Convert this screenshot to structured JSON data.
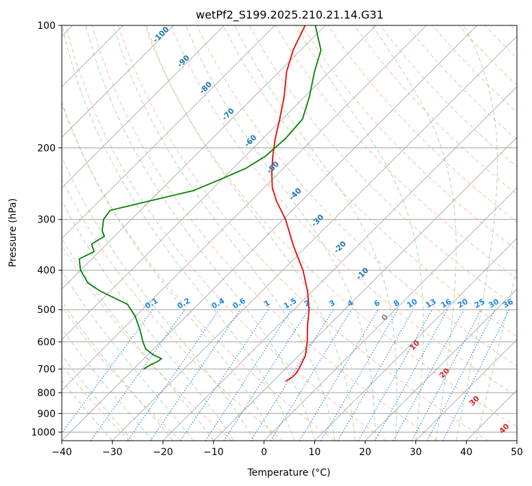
{
  "chart_data": {
    "type": "line",
    "title": "wetPf2_S199.2025.210.21.14.G31",
    "xlabel": "Temperature (°C)",
    "ylabel": "Pressure (hPa)",
    "xlim": [
      -40,
      50
    ],
    "ylim": [
      1050,
      100
    ],
    "y_scale": "log",
    "x_ticks": [
      -40,
      -30,
      -20,
      -10,
      0,
      10,
      20,
      30,
      40,
      50
    ],
    "x_tick_labels": [
      "−40",
      "−30",
      "−20",
      "−10",
      "0",
      "10",
      "20",
      "30",
      "40",
      "50"
    ],
    "y_ticks": [
      1000,
      900,
      800,
      700,
      600,
      500,
      400,
      300,
      200,
      100
    ],
    "y_tick_labels": [
      "1000",
      "900",
      "800",
      "700",
      "600",
      "500",
      "400",
      "300",
      "200",
      "100"
    ],
    "grid": true,
    "skew": "skew-T log-p",
    "series": [
      {
        "color": "#ee0000",
        "points": [
          {
            "p": 750,
            "t": -7.5
          },
          {
            "p": 735,
            "t": -7.0
          },
          {
            "p": 715,
            "t": -7.0
          },
          {
            "p": 700,
            "t": -7.3
          },
          {
            "p": 680,
            "t": -7.8
          },
          {
            "p": 650,
            "t": -8.6
          },
          {
            "p": 600,
            "t": -11.0
          },
          {
            "p": 550,
            "t": -14.0
          },
          {
            "p": 500,
            "t": -17.0
          },
          {
            "p": 450,
            "t": -21.0
          },
          {
            "p": 400,
            "t": -26.0
          },
          {
            "p": 350,
            "t": -32.5
          },
          {
            "p": 300,
            "t": -39.5
          },
          {
            "p": 270,
            "t": -45.0
          },
          {
            "p": 250,
            "t": -48.5
          },
          {
            "p": 230,
            "t": -51.5
          },
          {
            "p": 210,
            "t": -54.5
          },
          {
            "p": 190,
            "t": -57.5
          },
          {
            "p": 170,
            "t": -60.5
          },
          {
            "p": 150,
            "t": -64.0
          },
          {
            "p": 130,
            "t": -68.5
          },
          {
            "p": 115,
            "t": -71.5
          },
          {
            "p": 100,
            "t": -74.0
          }
        ]
      },
      {
        "color": "#008000",
        "points": [
          {
            "p": 700,
            "t": -38.0
          },
          {
            "p": 685,
            "t": -37.5
          },
          {
            "p": 670,
            "t": -36.7
          },
          {
            "p": 660,
            "t": -36.5
          },
          {
            "p": 645,
            "t": -39.0
          },
          {
            "p": 625,
            "t": -41.5
          },
          {
            "p": 600,
            "t": -43.5
          },
          {
            "p": 560,
            "t": -46.5
          },
          {
            "p": 520,
            "t": -50.0
          },
          {
            "p": 485,
            "t": -54.0
          },
          {
            "p": 450,
            "t": -62.0
          },
          {
            "p": 430,
            "t": -66.0
          },
          {
            "p": 400,
            "t": -70.0
          },
          {
            "p": 375,
            "t": -72.5
          },
          {
            "p": 360,
            "t": -71.0
          },
          {
            "p": 345,
            "t": -73.0
          },
          {
            "p": 330,
            "t": -72.0
          },
          {
            "p": 320,
            "t": -73.5
          },
          {
            "p": 300,
            "t": -75.5
          },
          {
            "p": 285,
            "t": -76.0
          },
          {
            "p": 270,
            "t": -70.0
          },
          {
            "p": 255,
            "t": -63.5
          },
          {
            "p": 240,
            "t": -60.5
          },
          {
            "p": 225,
            "t": -57.5
          },
          {
            "p": 210,
            "t": -56.0
          },
          {
            "p": 190,
            "t": -55.5
          },
          {
            "p": 170,
            "t": -56.0
          },
          {
            "p": 150,
            "t": -59.0
          },
          {
            "p": 130,
            "t": -63.0
          },
          {
            "p": 115,
            "t": -66.0
          },
          {
            "p": 100,
            "t": -72.0
          }
        ]
      }
    ],
    "dry_adiabat_labels": [
      "-100",
      "-90",
      "-80",
      "-70",
      "-60",
      "-50",
      "-40",
      "-30",
      "-20",
      "-10"
    ],
    "mixing_ratio_labels": [
      "0.1",
      "0.2",
      "0.4",
      "0.6",
      "1",
      "1.5",
      "2",
      "3",
      "4",
      "6",
      "8",
      "10",
      "13",
      "16",
      "20",
      "25",
      "30",
      "36"
    ],
    "moist_adiabat_labels": [
      "0",
      "10",
      "20",
      "30",
      "40"
    ],
    "colors": {
      "temperature": "#ee0000",
      "dewpoint": "#008000",
      "dry_adiabat": "#f5a07a",
      "moist_adiabat": "#90c890",
      "mixing_ratio": "#1e88e5",
      "isotherm": "#a0a0a0",
      "isobar": "#a0a0a0",
      "dry_label": "#1f77b4",
      "mixing_label": "#1e88e5",
      "moist_label_cold": "#808080",
      "moist_label": "#d62728"
    }
  }
}
